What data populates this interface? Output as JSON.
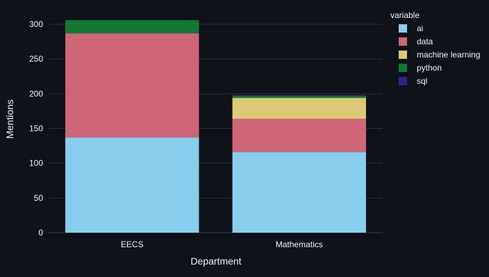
{
  "chart_data": {
    "type": "bar",
    "stacked": true,
    "xlabel": "Department",
    "ylabel": "Mentions",
    "categories": [
      "EECS",
      "Mathematics"
    ],
    "ylim": [
      0,
      315
    ],
    "yticks": [
      0,
      50,
      100,
      150,
      200,
      250,
      300
    ],
    "grid": true,
    "legend": {
      "title": "variable",
      "placement": "right"
    },
    "series": [
      {
        "name": "ai",
        "color": "#88cdee",
        "values": [
          137,
          116
        ]
      },
      {
        "name": "data",
        "color": "#cd6677",
        "values": [
          150,
          48
        ]
      },
      {
        "name": "machine learning",
        "color": "#dcca76",
        "values": [
          0,
          30
        ]
      },
      {
        "name": "python",
        "color": "#127733",
        "values": [
          19,
          3
        ]
      },
      {
        "name": "sql",
        "color": "#332288",
        "values": [
          0,
          1
        ]
      }
    ]
  }
}
